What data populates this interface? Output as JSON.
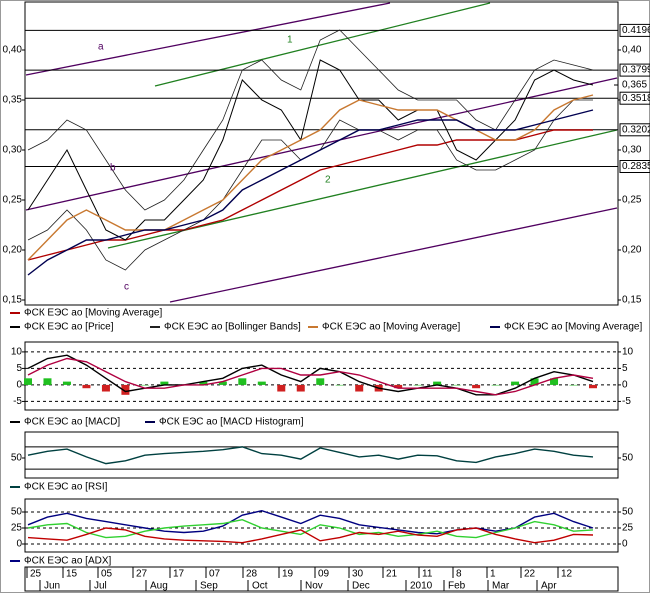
{
  "chart_data": [
    {
      "type": "line",
      "ylim": [
        0.145,
        0.447
      ],
      "yticks": [
        {
          "value": 0.15,
          "label": "0,15"
        },
        {
          "value": 0.2,
          "label": "0,20"
        },
        {
          "value": 0.25,
          "label": "0,25"
        },
        {
          "value": 0.3,
          "label": "0,30"
        },
        {
          "value": 0.35,
          "label": "0,35"
        },
        {
          "value": 0.4,
          "label": "0,40"
        }
      ],
      "levels": [
        0.4196,
        0.3799,
        0.3518,
        0.3202,
        0.2835
      ],
      "last_price": {
        "value": 0.365,
        "label": "0,365"
      },
      "annotations": [
        "a",
        "1",
        "b",
        "2",
        "c"
      ],
      "series": [
        {
          "name": "ФСК ЕЭС ао [Moving Average]",
          "color": "#b00000",
          "values": [
            0.19,
            0.195,
            0.2,
            0.205,
            0.21,
            0.21,
            0.215,
            0.22,
            0.22,
            0.225,
            0.23,
            0.24,
            0.25,
            0.26,
            0.27,
            0.28,
            0.285,
            0.29,
            0.295,
            0.3,
            0.305,
            0.305,
            0.31,
            0.31,
            0.31,
            0.31,
            0.315,
            0.32,
            0.32,
            0.32
          ]
        },
        {
          "name": "ФСК ЕЭС ао [Price]",
          "color": "#000000",
          "values": [
            0.24,
            0.27,
            0.3,
            0.26,
            0.22,
            0.21,
            0.23,
            0.23,
            0.25,
            0.27,
            0.31,
            0.37,
            0.35,
            0.34,
            0.31,
            0.39,
            0.38,
            0.35,
            0.35,
            0.33,
            0.34,
            0.34,
            0.3,
            0.29,
            0.31,
            0.33,
            0.37,
            0.38,
            0.37,
            0.365
          ]
        },
        {
          "name": "ФСК ЕЭС ао [Bollinger Bands]",
          "color": "#202020",
          "upper": [
            0.3,
            0.31,
            0.33,
            0.32,
            0.29,
            0.26,
            0.24,
            0.25,
            0.27,
            0.3,
            0.33,
            0.38,
            0.39,
            0.37,
            0.36,
            0.41,
            0.42,
            0.4,
            0.38,
            0.36,
            0.35,
            0.35,
            0.35,
            0.33,
            0.32,
            0.35,
            0.38,
            0.39,
            0.385,
            0.38
          ],
          "lower": [
            0.21,
            0.22,
            0.24,
            0.22,
            0.19,
            0.18,
            0.2,
            0.21,
            0.22,
            0.23,
            0.25,
            0.28,
            0.31,
            0.31,
            0.29,
            0.3,
            0.33,
            0.32,
            0.32,
            0.31,
            0.32,
            0.32,
            0.29,
            0.28,
            0.28,
            0.29,
            0.3,
            0.33,
            0.35,
            0.35
          ]
        },
        {
          "name": "ФСК ЕЭС ао [Moving Average]",
          "color": "#c87830",
          "values": [
            0.19,
            0.21,
            0.23,
            0.24,
            0.23,
            0.22,
            0.22,
            0.22,
            0.23,
            0.24,
            0.25,
            0.27,
            0.29,
            0.3,
            0.31,
            0.32,
            0.34,
            0.35,
            0.345,
            0.34,
            0.34,
            0.34,
            0.33,
            0.32,
            0.31,
            0.31,
            0.32,
            0.34,
            0.35,
            0.355
          ]
        },
        {
          "name": "ФСК ЕЭС ао [Moving Average]",
          "color": "#000050",
          "values": [
            0.175,
            0.19,
            0.2,
            0.21,
            0.21,
            0.215,
            0.22,
            0.22,
            0.225,
            0.23,
            0.24,
            0.26,
            0.27,
            0.28,
            0.29,
            0.3,
            0.31,
            0.32,
            0.32,
            0.325,
            0.33,
            0.33,
            0.33,
            0.32,
            0.32,
            0.32,
            0.325,
            0.33,
            0.335,
            0.34
          ]
        }
      ]
    },
    {
      "type": "line",
      "ylim": [
        -7.6,
        12.7
      ],
      "yticks": [
        -5,
        0,
        5,
        10
      ],
      "grid": true,
      "series": [
        {
          "name": "ФСК ЕЭС ао [MACD]",
          "color": "#000000",
          "values": [
            5,
            8,
            9,
            6,
            2,
            -2,
            -1,
            0,
            0,
            1,
            2,
            5,
            6,
            3,
            1,
            5,
            4,
            1,
            -1,
            -2,
            -1,
            0,
            -1,
            -3,
            -3,
            -1,
            2,
            4,
            3,
            1
          ]
        },
        {
          "color": "#b00040",
          "values": [
            3,
            6,
            8,
            7,
            4,
            1,
            -1,
            -1,
            0,
            0,
            1,
            3,
            5,
            5,
            3,
            3,
            4,
            3,
            1,
            -1,
            -1,
            -1,
            -1,
            -2,
            -3,
            -2,
            0,
            2,
            3,
            2
          ]
        }
      ],
      "histogram": {
        "name": "ФСК ЕЭС ао [MACD Histogram]",
        "color": "#000050",
        "up_color": "#20c020",
        "down_color": "#d02020",
        "values": [
          2,
          2,
          1,
          -1,
          -2,
          -3,
          0,
          1,
          0,
          1,
          1,
          2,
          1,
          -2,
          -2,
          2,
          0,
          -2,
          -2,
          -1,
          0,
          1,
          0,
          -1,
          0,
          1,
          2,
          2,
          0,
          -1
        ]
      }
    },
    {
      "type": "line",
      "ylim": [
        14,
        95
      ],
      "yticks": [
        50
      ],
      "levels": [
        70,
        30
      ],
      "series": [
        {
          "name": "ФСК ЕЭС ао [RSI]",
          "color": "#004040",
          "values": [
            55,
            62,
            66,
            52,
            40,
            45,
            55,
            58,
            60,
            62,
            65,
            70,
            58,
            55,
            48,
            68,
            60,
            52,
            55,
            48,
            55,
            54,
            45,
            42,
            52,
            58,
            66,
            62,
            55,
            52
          ]
        }
      ]
    },
    {
      "type": "line",
      "ylim": [
        -12.5,
        68.75
      ],
      "yticks": [
        0,
        25,
        50
      ],
      "grid": true,
      "series": [
        {
          "name": "ФСК ЕЭС ао [ADX]",
          "color": "#000080",
          "values": [
            30,
            42,
            48,
            40,
            35,
            30,
            25,
            20,
            18,
            20,
            28,
            45,
            52,
            42,
            32,
            45,
            40,
            30,
            26,
            22,
            18,
            16,
            22,
            25,
            20,
            25,
            42,
            48,
            35,
            25
          ]
        },
        {
          "color": "#30d030",
          "values": [
            25,
            30,
            32,
            18,
            10,
            12,
            20,
            25,
            28,
            30,
            32,
            38,
            25,
            20,
            15,
            30,
            25,
            15,
            18,
            12,
            15,
            20,
            12,
            10,
            18,
            25,
            35,
            30,
            20,
            22
          ]
        },
        {
          "color": "#c00000",
          "values": [
            10,
            8,
            6,
            15,
            25,
            22,
            12,
            8,
            6,
            5,
            4,
            2,
            8,
            15,
            22,
            5,
            10,
            18,
            15,
            20,
            14,
            12,
            22,
            25,
            15,
            8,
            2,
            6,
            15,
            14
          ]
        }
      ]
    }
  ],
  "date_axis": {
    "days": [
      "25",
      "15",
      "05",
      "27",
      "17",
      "07",
      "28",
      "19",
      "09",
      "30",
      "21",
      "11",
      "8",
      "1",
      "22",
      "12"
    ],
    "months": [
      "Jun",
      "Jul",
      "Aug",
      "Sep",
      "Oct",
      "Nov",
      "Dec",
      "2010",
      "Feb",
      "Mar",
      "Apr"
    ]
  }
}
